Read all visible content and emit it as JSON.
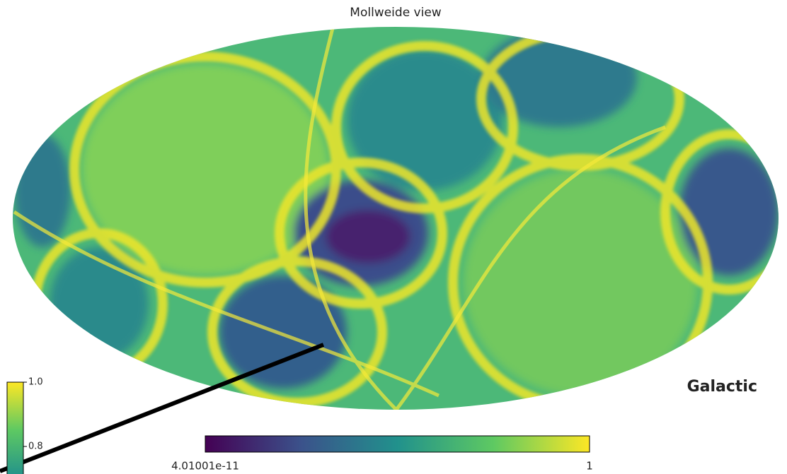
{
  "title": "Mollweide view",
  "coord_label": "Galactic",
  "colorbar": {
    "min_label": "4.01001e-11",
    "max_label": "1"
  },
  "left_colorbar": {
    "tick_labels": [
      "1.0",
      "0.8"
    ]
  }
}
